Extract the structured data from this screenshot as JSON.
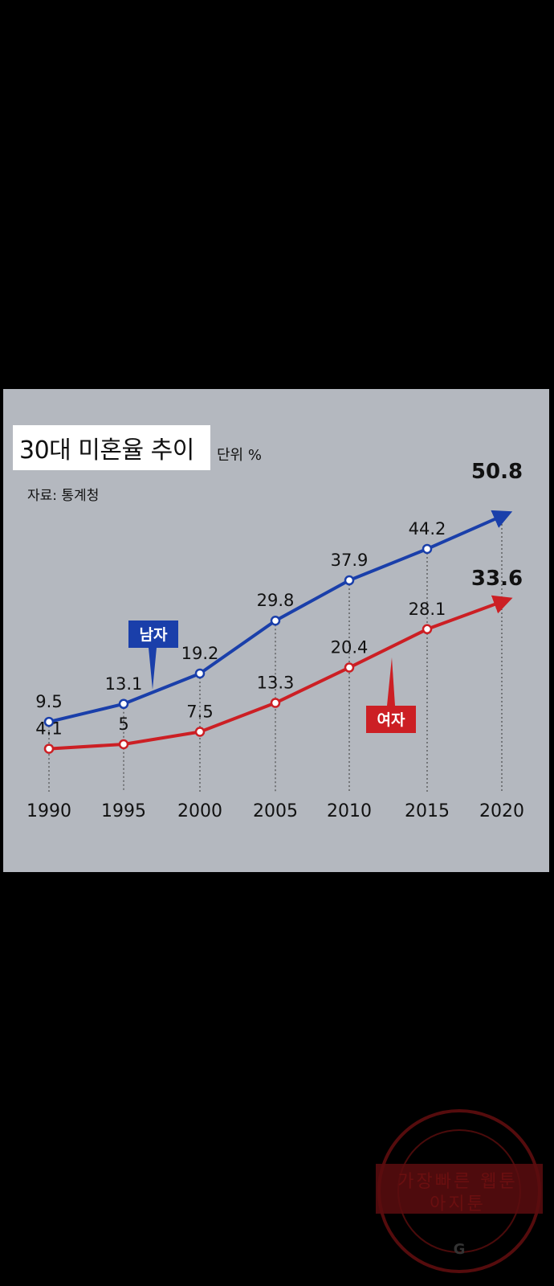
{
  "title": "30대 미혼율 추이",
  "unit": "단위 %",
  "source": "자료: 통계청",
  "chart_data": {
    "type": "line",
    "title": "30대 미혼율 추이",
    "categories": [
      "1990",
      "1995",
      "2000",
      "2005",
      "2010",
      "2015",
      "2020"
    ],
    "series": [
      {
        "name": "남자",
        "color": "#1a3faa",
        "values": [
          9.5,
          13.1,
          19.2,
          29.8,
          37.9,
          44.2,
          50.8
        ],
        "labels": [
          "9.5",
          "13.1",
          "19.2",
          "29.8",
          "37.9",
          "44.2",
          "50.8"
        ]
      },
      {
        "name": "여자",
        "color": "#cc1f24",
        "values": [
          4.1,
          5,
          7.5,
          13.3,
          20.4,
          28.1,
          33.6
        ],
        "labels": [
          "4.1",
          "5",
          "7.5",
          "13.3",
          "20.4",
          "28.1",
          "33.6"
        ]
      }
    ],
    "ylim": [
      0,
      55
    ],
    "grid": false,
    "legend": "callouts"
  },
  "watermark": {
    "ring_text": "AGIT WEBTOON",
    "line1": "가장빠른 웹툰",
    "line2": "아지툰"
  }
}
